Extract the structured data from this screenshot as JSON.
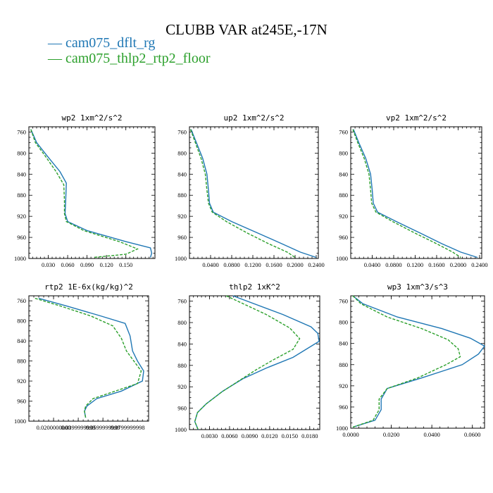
{
  "title": "CLUBB VAR at245E,-17N",
  "colors": {
    "blue": "#1f77b4",
    "green": "#2ca02c"
  },
  "legend": [
    {
      "label": "cam075_dflt_rg",
      "marker": "—",
      "color": "#1f77b4"
    },
    {
      "label": "cam075_thlp2_rtp2_floor",
      "marker": "—",
      "color": "#2ca02c"
    }
  ],
  "chart_data": [
    {
      "type": "line",
      "title": "wp2  1xm^2/s^2",
      "xlim": [
        0,
        0.195
      ],
      "ylim": [
        1000,
        750
      ],
      "xticks": [
        0.03,
        0.06,
        0.09,
        0.12,
        0.15
      ],
      "xtick_labels": [
        "0.030",
        "0.060",
        "0.090",
        "0.120",
        "0.150"
      ],
      "yticks": [
        760,
        800,
        840,
        880,
        920,
        960,
        1000
      ],
      "series": [
        {
          "name": "cam075_dflt_rg",
          "color": "#1f77b4",
          "dash": "solid",
          "x": [
            0.003,
            0.012,
            0.028,
            0.048,
            0.058,
            0.057,
            0.056,
            0.06,
            0.09,
            0.15,
            0.188,
            0.19,
            0.188
          ],
          "y": [
            755,
            780,
            805,
            835,
            857,
            890,
            915,
            930,
            947,
            968,
            980,
            990,
            998
          ]
        },
        {
          "name": "cam075_thlp2_rtp2_floor",
          "color": "#2ca02c",
          "dash": "dashed",
          "x": [
            0.003,
            0.01,
            0.025,
            0.042,
            0.054,
            0.055,
            0.055,
            0.058,
            0.085,
            0.14,
            0.168,
            0.15,
            0.1
          ],
          "y": [
            755,
            780,
            805,
            835,
            860,
            890,
            915,
            930,
            947,
            968,
            982,
            992,
            998
          ]
        }
      ]
    },
    {
      "type": "line",
      "title": "up2  1xm^2/s^2",
      "xlim": [
        0,
        0.244
      ],
      "ylim": [
        1000,
        750
      ],
      "xticks": [
        0.04,
        0.08,
        0.12,
        0.16,
        0.2,
        0.24
      ],
      "xtick_labels": [
        "0.0400",
        "0.0800",
        "0.1200",
        "0.1600",
        "0.2000",
        "0.2400"
      ],
      "yticks": [
        760,
        800,
        840,
        880,
        920,
        960,
        1000
      ],
      "series": [
        {
          "name": "cam075_dflt_rg",
          "color": "#1f77b4",
          "dash": "solid",
          "x": [
            0.003,
            0.013,
            0.025,
            0.033,
            0.036,
            0.038,
            0.045,
            0.08,
            0.13,
            0.175,
            0.21,
            0.24
          ],
          "y": [
            755,
            780,
            810,
            840,
            870,
            895,
            912,
            930,
            952,
            972,
            988,
            998
          ]
        },
        {
          "name": "cam075_thlp2_rtp2_floor",
          "color": "#2ca02c",
          "dash": "dashed",
          "x": [
            0.002,
            0.011,
            0.022,
            0.03,
            0.033,
            0.036,
            0.043,
            0.07,
            0.11,
            0.15,
            0.185,
            0.2
          ],
          "y": [
            755,
            780,
            810,
            840,
            870,
            895,
            912,
            930,
            952,
            972,
            988,
            998
          ]
        }
      ]
    },
    {
      "type": "line",
      "title": "vp2  1xm^2/s^2",
      "xlim": [
        0,
        0.244
      ],
      "ylim": [
        1000,
        750
      ],
      "xticks": [
        0.04,
        0.08,
        0.12,
        0.16,
        0.2,
        0.24
      ],
      "xtick_labels": [
        "0.0400",
        "0.0800",
        "0.1200",
        "0.1600",
        "0.2000",
        "0.2400"
      ],
      "yticks": [
        760,
        800,
        840,
        880,
        920,
        960,
        1000
      ],
      "series": [
        {
          "name": "cam075_dflt_rg",
          "color": "#1f77b4",
          "dash": "solid",
          "x": [
            0.005,
            0.015,
            0.028,
            0.037,
            0.04,
            0.042,
            0.05,
            0.085,
            0.13,
            0.17,
            0.205,
            0.236
          ],
          "y": [
            755,
            780,
            810,
            840,
            870,
            895,
            912,
            930,
            952,
            972,
            988,
            998
          ]
        },
        {
          "name": "cam075_thlp2_rtp2_floor",
          "color": "#2ca02c",
          "dash": "dashed",
          "x": [
            0.004,
            0.013,
            0.025,
            0.034,
            0.037,
            0.039,
            0.047,
            0.078,
            0.12,
            0.16,
            0.19,
            0.205
          ],
          "y": [
            755,
            780,
            810,
            840,
            870,
            895,
            912,
            930,
            952,
            972,
            988,
            998
          ]
        }
      ]
    },
    {
      "type": "line",
      "title": "rtp2  1E-6x(kg/kg)^2",
      "xlim": [
        0,
        0.097
      ],
      "ylim": [
        1000,
        750
      ],
      "xticks": [
        0.02,
        0.04,
        0.06,
        0.08
      ],
      "xtick_labels": [
        "0.0200000000",
        "0.0399999999",
        "0.0599999999",
        "0.0799999998"
      ],
      "yticks": [
        760,
        800,
        840,
        880,
        920,
        960,
        1000
      ],
      "series": [
        {
          "name": "cam075_dflt_rg",
          "color": "#1f77b4",
          "dash": "solid",
          "x": [
            0.008,
            0.03,
            0.058,
            0.078,
            0.082,
            0.084,
            0.088,
            0.093,
            0.092,
            0.075,
            0.055,
            0.047,
            0.045,
            0.046
          ],
          "y": [
            755,
            770,
            790,
            805,
            830,
            860,
            880,
            900,
            920,
            940,
            955,
            970,
            980,
            993
          ]
        },
        {
          "name": "cam075_thlp2_rtp2_floor",
          "color": "#2ca02c",
          "dash": "dashed",
          "x": [
            0.005,
            0.025,
            0.05,
            0.068,
            0.075,
            0.079,
            0.085,
            0.091,
            0.088,
            0.07,
            0.052,
            0.046,
            0.045,
            0.046
          ],
          "y": [
            755,
            770,
            790,
            810,
            835,
            860,
            880,
            900,
            925,
            940,
            955,
            970,
            980,
            993
          ]
        }
      ]
    },
    {
      "type": "line",
      "title": "thlp2  1xK^2",
      "xlim": [
        0,
        0.0195
      ],
      "ylim": [
        1000,
        750
      ],
      "xticks": [
        0.003,
        0.006,
        0.009,
        0.012,
        0.015,
        0.018
      ],
      "xtick_labels": [
        "0.0030",
        "0.0060",
        "0.0090",
        "0.0120",
        "0.0150",
        "0.0180"
      ],
      "yticks": [
        760,
        800,
        840,
        880,
        920,
        960,
        1000
      ],
      "series": [
        {
          "name": "cam075_dflt_rg",
          "color": "#1f77b4",
          "dash": "solid",
          "x": [
            0.0065,
            0.014,
            0.0182,
            0.0192,
            0.0194,
            0.0155,
            0.0115,
            0.008,
            0.005,
            0.0025,
            0.0012,
            0.0008,
            0.0013
          ],
          "y": [
            750,
            785,
            808,
            820,
            835,
            865,
            885,
            905,
            928,
            952,
            968,
            985,
            1000
          ]
        },
        {
          "name": "cam075_thlp2_rtp2_floor",
          "color": "#2ca02c",
          "dash": "dashed",
          "x": [
            0.0055,
            0.0115,
            0.015,
            0.0165,
            0.0155,
            0.0125,
            0.01,
            0.0075,
            0.0048,
            0.0025,
            0.0012,
            0.0008,
            0.0013
          ],
          "y": [
            750,
            785,
            810,
            830,
            850,
            870,
            888,
            908,
            930,
            952,
            968,
            985,
            1000
          ]
        }
      ]
    },
    {
      "type": "line",
      "title": "wp3  1xm^3/s^3",
      "xlim": [
        0,
        0.066
      ],
      "ylim": [
        1000,
        750
      ],
      "xticks": [
        0.0,
        0.02,
        0.04,
        0.06
      ],
      "xtick_labels": [
        "0.0000",
        "0.0200",
        "0.0400",
        "0.0600"
      ],
      "yticks": [
        760,
        800,
        840,
        880,
        920,
        960,
        1000
      ],
      "series": [
        {
          "name": "cam075_dflt_rg",
          "color": "#1f77b4",
          "dash": "solid",
          "x": [
            0.001,
            0.006,
            0.023,
            0.045,
            0.059,
            0.066,
            0.063,
            0.055,
            0.035,
            0.018,
            0.015,
            0.015,
            0.012,
            0.001
          ],
          "y": [
            750,
            765,
            790,
            812,
            830,
            845,
            860,
            880,
            905,
            925,
            945,
            965,
            985,
            998
          ]
        },
        {
          "name": "cam075_thlp2_rtp2_floor",
          "color": "#2ca02c",
          "dash": "dashed",
          "x": [
            0.001,
            0.005,
            0.018,
            0.035,
            0.048,
            0.053,
            0.054,
            0.047,
            0.033,
            0.018,
            0.014,
            0.014,
            0.011,
            0.001
          ],
          "y": [
            750,
            765,
            790,
            812,
            833,
            850,
            865,
            880,
            905,
            925,
            945,
            965,
            985,
            998
          ]
        }
      ]
    }
  ]
}
